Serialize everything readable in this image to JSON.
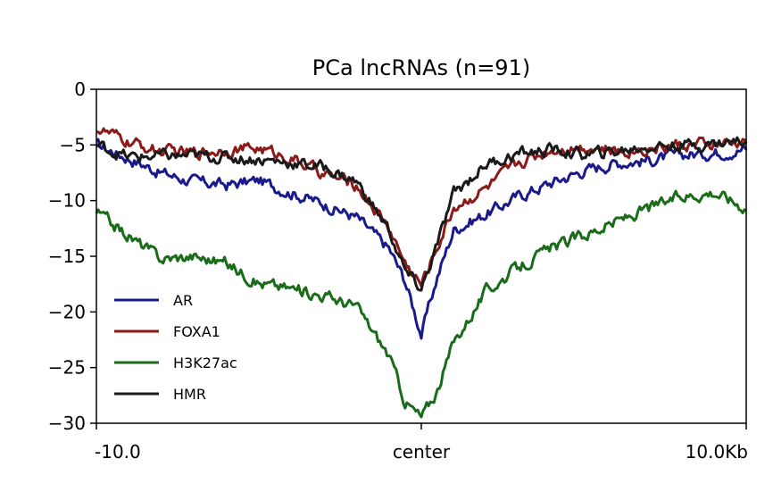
{
  "chart_data": {
    "type": "line",
    "title": "PCa lncRNAs (n=91)",
    "xlabel": "",
    "ylabel": "",
    "xlim": [
      -10,
      10
    ],
    "ylim": [
      -30,
      0
    ],
    "x_ticks": [
      {
        "value": -10,
        "label": "-10.0"
      },
      {
        "value": 0,
        "label": "center"
      },
      {
        "value": 10,
        "label": "10.0Kb"
      }
    ],
    "y_ticks": [
      {
        "value": 0,
        "label": "0"
      },
      {
        "value": -5,
        "label": "−5"
      },
      {
        "value": -10,
        "label": "−10"
      },
      {
        "value": -15,
        "label": "−15"
      },
      {
        "value": -20,
        "label": "−20"
      },
      {
        "value": -25,
        "label": "−25"
      },
      {
        "value": -30,
        "label": "−30"
      }
    ],
    "grid": false,
    "legend_position": "lower-left",
    "x": [
      -10,
      -9,
      -8,
      -7,
      -6,
      -5,
      -4,
      -3,
      -2,
      -1,
      -0.5,
      0,
      0.5,
      1,
      2,
      3,
      4,
      5,
      6,
      7,
      8,
      9,
      10
    ],
    "series": [
      {
        "name": "AR",
        "color": "#1a1a8c",
        "values": [
          -5,
          -6.2,
          -7.5,
          -8.3,
          -8.6,
          -8.2,
          -9.3,
          -10.3,
          -11.5,
          -14.3,
          -17.2,
          -22,
          -16.8,
          -12.6,
          -11.2,
          -9.6,
          -8.4,
          -7.3,
          -6.6,
          -6.4,
          -5.9,
          -5.7,
          -5.4
        ]
      },
      {
        "name": "FOXA1",
        "color": "#8b1a1a",
        "values": [
          -3.5,
          -4.8,
          -5.6,
          -5.7,
          -5.4,
          -5.3,
          -6.2,
          -7.6,
          -8.6,
          -12.4,
          -15.6,
          -17.6,
          -14.1,
          -10.6,
          -8.9,
          -6.6,
          -5.4,
          -5.1,
          -5.6,
          -5.3,
          -5,
          -5,
          -4.8
        ]
      },
      {
        "name": "H3K27ac",
        "color": "#1a6b1a",
        "values": [
          -11,
          -13.2,
          -15.2,
          -15,
          -15.6,
          -17.4,
          -17.9,
          -18.5,
          -19.5,
          -23.9,
          -28,
          -29.5,
          -27,
          -22.7,
          -18.1,
          -16,
          -14.3,
          -13.1,
          -11.9,
          -10.7,
          -9.6,
          -9.2,
          -10.6
        ]
      },
      {
        "name": "HMR",
        "color": "#1a1a1a",
        "values": [
          -5,
          -6.1,
          -6,
          -6,
          -6.1,
          -6.3,
          -6.6,
          -7,
          -8.3,
          -12.6,
          -16.4,
          -18,
          -13.9,
          -9.4,
          -6.7,
          -5.8,
          -5.4,
          -5.9,
          -5.6,
          -5.1,
          -5,
          -4.9,
          -4.6
        ]
      }
    ]
  }
}
